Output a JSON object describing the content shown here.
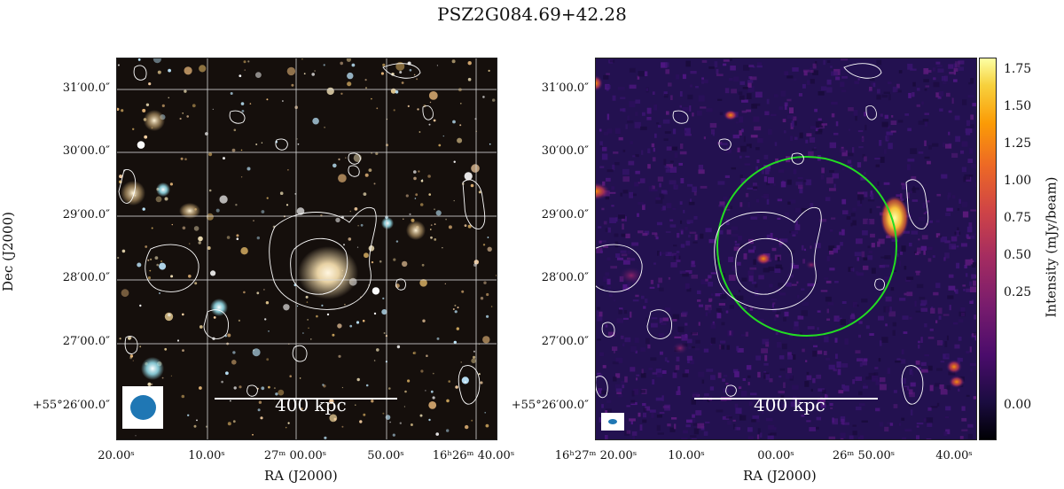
{
  "figure": {
    "title": "PSZ2G084.69+42.28"
  },
  "left_panel": {
    "dec_ticks": [
      "31′00.0″",
      "30′00.0″",
      "29′00.0″",
      "28′00.0″",
      "27′00.0″",
      "+55°26′00.0″"
    ],
    "ra_ticks": [
      "20.00ˢ",
      "10.00ˢ",
      "27ᵐ 00.00ˢ",
      "50.00ˢ",
      "16ʰ26ᵐ 40.00ˢ"
    ],
    "ylabel": "Dec (J2000)",
    "xlabel": "RA (J2000)",
    "scalebar_label": "400 kpc",
    "beam_color": "#1f77b4"
  },
  "right_panel": {
    "dec_ticks": [
      "31′00.0″",
      "30′00.0″",
      "29′00.0″",
      "28′00.0″",
      "27′00.0″",
      "+55°26′00.0″"
    ],
    "ra_ticks": [
      "16ʰ27ᵐ 20.00ˢ",
      "10.00ˢ",
      "00.00ˢ",
      "26ᵐ 50.00ˢ",
      "40.00ˢ"
    ],
    "xlabel": "RA (J2000)",
    "scalebar_label": "400 kpc",
    "circle_color": "#22dd22",
    "beam_color": "#1f77b4"
  },
  "colorbar": {
    "label": "Intensity (mJy/beam)",
    "ticks": [
      "1.75",
      "1.50",
      "1.25",
      "1.00",
      "0.75",
      "0.50",
      "0.25",
      "0.00"
    ],
    "colormap": "inferno"
  }
}
